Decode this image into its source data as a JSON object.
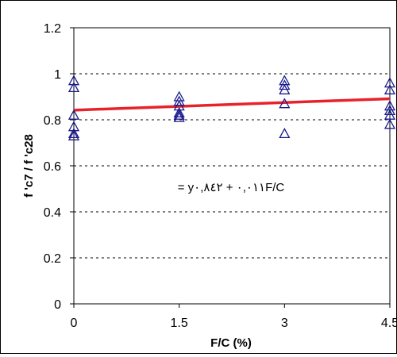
{
  "chart_data": {
    "type": "scatter",
    "xlabel": "F/C (%)",
    "ylabel": "f 'c7 / f 'c28",
    "x_ticks": [
      "0",
      "1.5",
      "3",
      "4.5"
    ],
    "y_ticks": [
      "0",
      "0.2",
      "0.4",
      "0.6",
      "0.8",
      "1",
      "1.2"
    ],
    "xlim": [
      0,
      4.5
    ],
    "ylim": [
      0,
      1.2
    ],
    "grid": "horizontal dashed",
    "legend": "none",
    "marker": "open-triangle",
    "marker_color": "#1a1a8c",
    "trendline_color": "#e8222a",
    "points": [
      {
        "x": 0,
        "y": 0.97
      },
      {
        "x": 0,
        "y": 0.94
      },
      {
        "x": 0,
        "y": 0.82
      },
      {
        "x": 0,
        "y": 0.77
      },
      {
        "x": 0,
        "y": 0.74
      },
      {
        "x": 0,
        "y": 0.73
      },
      {
        "x": 1.5,
        "y": 0.9
      },
      {
        "x": 1.5,
        "y": 0.88
      },
      {
        "x": 1.5,
        "y": 0.86
      },
      {
        "x": 1.5,
        "y": 0.83
      },
      {
        "x": 1.5,
        "y": 0.82
      },
      {
        "x": 1.5,
        "y": 0.81
      },
      {
        "x": 3,
        "y": 0.97
      },
      {
        "x": 3,
        "y": 0.95
      },
      {
        "x": 3,
        "y": 0.93
      },
      {
        "x": 3,
        "y": 0.87
      },
      {
        "x": 3,
        "y": 0.74
      },
      {
        "x": 4.5,
        "y": 0.96
      },
      {
        "x": 4.5,
        "y": 0.93
      },
      {
        "x": 4.5,
        "y": 0.86
      },
      {
        "x": 4.5,
        "y": 0.84
      },
      {
        "x": 4.5,
        "y": 0.82
      },
      {
        "x": 4.5,
        "y": 0.78
      }
    ],
    "trendline": {
      "intercept": 0.842,
      "slope": 0.011
    },
    "annotation": "= y۰,۸٤۲ + ۰,۰۱۱F/C"
  }
}
